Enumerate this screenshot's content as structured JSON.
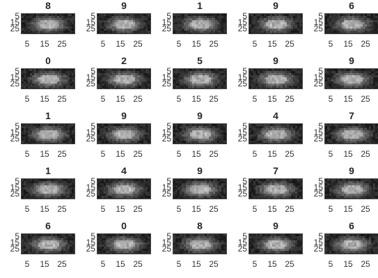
{
  "chart_data": {
    "type": "heatmap",
    "layout": {
      "rows": 5,
      "cols": 5
    },
    "colormap": "gray",
    "ytick_labels": [
      "5",
      "15",
      "25"
    ],
    "xtick_labels": [
      "5",
      "15",
      "25"
    ],
    "titles": [
      "8",
      "9",
      "1",
      "9",
      "6",
      "0",
      "2",
      "5",
      "9",
      "9",
      "1",
      "9",
      "9",
      "4",
      "7",
      "1",
      "4",
      "9",
      "7",
      "9",
      "6",
      "0",
      "8",
      "9",
      "6"
    ]
  },
  "colors": {
    "background": "#ffffff",
    "text": "#262626",
    "axis": "#333333"
  }
}
